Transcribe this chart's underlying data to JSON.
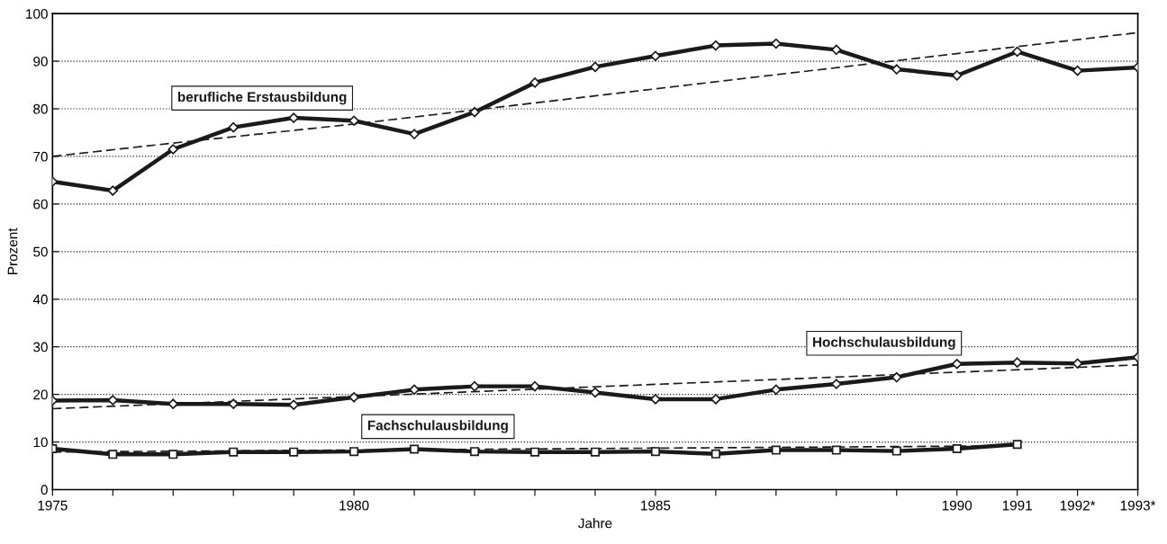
{
  "chart_data": {
    "type": "line",
    "xlabel": "Jahre",
    "ylabel": "Prozent",
    "xlim": [
      1975,
      1993
    ],
    "ylim": [
      0,
      100
    ],
    "xticks": [
      1975,
      {
        "value": 1976,
        "label": null
      },
      {
        "value": 1977,
        "label": null
      },
      {
        "value": 1978,
        "label": null
      },
      {
        "value": 1979,
        "label": null
      },
      1980,
      {
        "value": 1981,
        "label": null
      },
      {
        "value": 1982,
        "label": null
      },
      {
        "value": 1983,
        "label": null
      },
      {
        "value": 1984,
        "label": null
      },
      1985,
      {
        "value": 1986,
        "label": null
      },
      {
        "value": 1987,
        "label": null
      },
      {
        "value": 1988,
        "label": null
      },
      {
        "value": 1989,
        "label": null
      },
      1990,
      1991,
      {
        "value": 1992,
        "label": "1992*"
      },
      {
        "value": 1993,
        "label": "1993*"
      }
    ],
    "yticks": [
      0,
      10,
      20,
      30,
      40,
      50,
      60,
      70,
      80,
      90,
      100
    ],
    "grid": "y",
    "legend": false,
    "series": [
      {
        "name": "berufliche Erstausbildung",
        "color": "#1a1a1a",
        "marker": "diamond",
        "line_style": "solid",
        "x": [
          1975,
          1976,
          1977,
          1978,
          1979,
          1980,
          1981,
          1982,
          1983,
          1984,
          1985,
          1986,
          1987,
          1988,
          1989,
          1990,
          1991,
          1992,
          1993
        ],
        "values": [
          64.7,
          62.8,
          71.5,
          76.1,
          78.1,
          77.5,
          74.7,
          79.3,
          85.5,
          88.8,
          91.1,
          93.3,
          93.7,
          92.4,
          88.3,
          87.0,
          92.0,
          88.0,
          88.7
        ]
      },
      {
        "name": "Hochschulausbildung",
        "color": "#1a1a1a",
        "marker": "diamond",
        "line_style": "solid",
        "x": [
          1975,
          1976,
          1977,
          1978,
          1979,
          1980,
          1981,
          1982,
          1983,
          1984,
          1985,
          1986,
          1987,
          1988,
          1989,
          1990,
          1991,
          1992,
          1993
        ],
        "values": [
          18.7,
          18.8,
          18.0,
          18.0,
          17.8,
          19.4,
          21.0,
          21.7,
          21.7,
          20.4,
          19.0,
          19.0,
          21.0,
          22.2,
          23.6,
          26.4,
          26.7,
          26.5,
          27.8
        ]
      },
      {
        "name": "Fachschulausbildung",
        "color": "#1a1a1a",
        "marker": "square",
        "line_style": "solid",
        "x": [
          1975,
          1976,
          1977,
          1978,
          1979,
          1980,
          1981,
          1982,
          1983,
          1984,
          1985,
          1986,
          1987,
          1988,
          1989,
          1990,
          1991
        ],
        "values": [
          8.6,
          7.4,
          7.4,
          7.9,
          7.9,
          8.0,
          8.5,
          8.0,
          7.9,
          7.9,
          8.0,
          7.5,
          8.3,
          8.3,
          8.1,
          8.6,
          9.5
        ]
      },
      {
        "color": "#1a1a1a",
        "marker": "none",
        "line_style": "dashed",
        "x": [
          1975,
          1977,
          1980,
          1985,
          1990,
          1993
        ],
        "values": [
          70.0,
          72.8,
          76.8,
          84.2,
          91.6,
          96.0
        ]
      },
      {
        "color": "#1a1a1a",
        "marker": "none",
        "line_style": "dashed",
        "x": [
          1975,
          1993
        ],
        "values": [
          17.0,
          26.2
        ]
      },
      {
        "color": "#1a1a1a",
        "marker": "none",
        "line_style": "dashed",
        "x": [
          1975,
          1991
        ],
        "values": [
          7.9,
          9.2
        ]
      }
    ]
  }
}
